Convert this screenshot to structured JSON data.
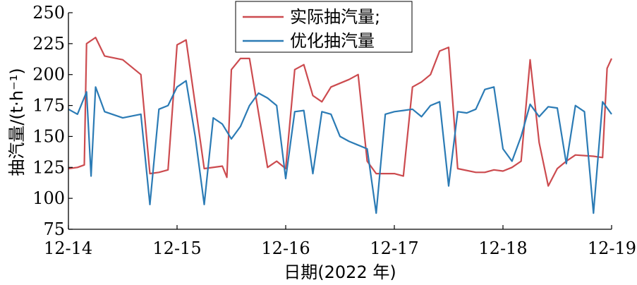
{
  "chart_data": {
    "type": "line",
    "xlabel": "日期(2022 年)",
    "ylabel": "抽汽量/(t·h⁻¹)",
    "ylim": [
      75,
      250
    ],
    "yticks": [
      75,
      100,
      125,
      150,
      175,
      200,
      225,
      250
    ],
    "xlim": [
      "12-14",
      "12-19"
    ],
    "xticks": [
      "12-14",
      "12-15",
      "12-16",
      "12-17",
      "12-18",
      "12-19"
    ],
    "grid": false,
    "legend_position": "top-center",
    "series": [
      {
        "name": "实际抽汽量;",
        "color": "#cc4b4f",
        "x": [
          "12-14 00:00",
          "12-14 02:00",
          "12-14 03:30",
          "12-14 04:00",
          "12-14 06:00",
          "12-14 08:00",
          "12-14 12:00",
          "12-14 16:00",
          "12-14 18:00",
          "12-14 20:00",
          "12-14 22:00",
          "12-15 00:00",
          "12-15 02:00",
          "12-15 06:00",
          "12-15 10:00",
          "12-15 11:00",
          "12-15 12:00",
          "12-15 14:00",
          "12-15 16:00",
          "12-15 20:00",
          "12-15 22:00",
          "12-16 00:00",
          "12-16 02:00",
          "12-16 04:00",
          "12-16 06:00",
          "12-16 08:00",
          "12-16 10:00",
          "12-16 14:00",
          "12-16 16:00",
          "12-16 18:00",
          "12-16 20:00",
          "12-16 22:00",
          "12-17 00:00",
          "12-17 02:00",
          "12-17 04:00",
          "12-17 06:00",
          "12-17 08:00",
          "12-17 10:00",
          "12-17 12:00",
          "12-17 14:00",
          "12-17 18:00",
          "12-17 20:00",
          "12-17 22:00",
          "12-18 00:00",
          "12-18 02:00",
          "12-18 04:00",
          "12-18 06:00",
          "12-18 08:00",
          "12-18 10:00",
          "12-18 12:00",
          "12-18 14:00",
          "12-18 16:00",
          "12-18 20:00",
          "12-18 22:00",
          "12-18 23:00",
          "12-19 00:00"
        ],
        "values": [
          124,
          125,
          127,
          225,
          230,
          215,
          212,
          200,
          120,
          121,
          123,
          224,
          228,
          124,
          126,
          117,
          204,
          213,
          213,
          125,
          130,
          124,
          204,
          208,
          183,
          178,
          190,
          196,
          200,
          130,
          120,
          120,
          120,
          118,
          190,
          194,
          200,
          219,
          222,
          124,
          121,
          121,
          123,
          122,
          125,
          130,
          212,
          145,
          110,
          124,
          130,
          135,
          134,
          133,
          205,
          213
        ]
      },
      {
        "name": "优化抽汽量",
        "color": "#2b7bb5",
        "x": [
          "12-14 00:00",
          "12-14 02:00",
          "12-14 04:00",
          "12-14 05:00",
          "12-14 06:00",
          "12-14 08:00",
          "12-14 12:00",
          "12-14 16:00",
          "12-14 18:00",
          "12-14 20:00",
          "12-14 22:00",
          "12-15 00:00",
          "12-15 02:00",
          "12-15 04:00",
          "12-15 06:00",
          "12-15 08:00",
          "12-15 10:00",
          "12-15 12:00",
          "12-15 14:00",
          "12-15 16:00",
          "12-15 18:00",
          "12-15 20:00",
          "12-15 22:00",
          "12-16 00:00",
          "12-16 02:00",
          "12-16 04:00",
          "12-16 06:00",
          "12-16 08:00",
          "12-16 10:00",
          "12-16 12:00",
          "12-16 14:00",
          "12-16 16:00",
          "12-16 18:00",
          "12-16 20:00",
          "12-16 22:00",
          "12-17 00:00",
          "12-17 02:00",
          "12-17 04:00",
          "12-17 06:00",
          "12-17 08:00",
          "12-17 10:00",
          "12-17 12:00",
          "12-17 14:00",
          "12-17 16:00",
          "12-17 18:00",
          "12-17 20:00",
          "12-17 22:00",
          "12-18 00:00",
          "12-18 02:00",
          "12-18 04:00",
          "12-18 06:00",
          "12-18 08:00",
          "12-18 10:00",
          "12-18 12:00",
          "12-18 14:00",
          "12-18 16:00",
          "12-18 18:00",
          "12-18 20:00",
          "12-18 22:00",
          "12-19 00:00"
        ],
        "values": [
          172,
          168,
          186,
          118,
          190,
          170,
          165,
          168,
          95,
          172,
          175,
          190,
          195,
          150,
          95,
          165,
          160,
          148,
          158,
          175,
          185,
          181,
          175,
          116,
          170,
          171,
          120,
          170,
          168,
          150,
          146,
          143,
          140,
          88,
          168,
          170,
          171,
          172,
          166,
          175,
          178,
          110,
          170,
          169,
          172,
          188,
          190,
          140,
          130,
          150,
          176,
          166,
          174,
          173,
          128,
          175,
          170,
          88,
          178,
          168
        ]
      }
    ]
  }
}
